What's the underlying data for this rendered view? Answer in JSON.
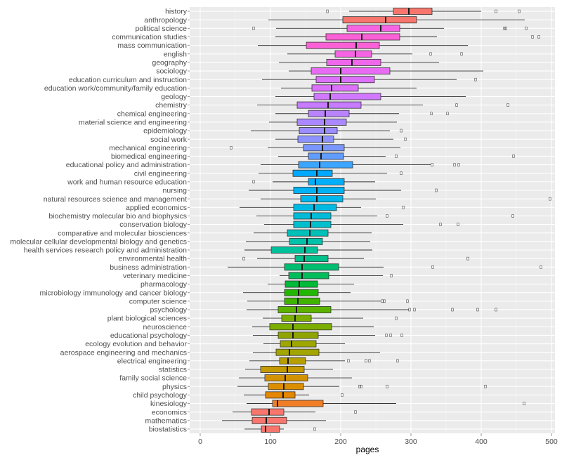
{
  "chart_data": {
    "type": "boxplot",
    "orientation": "horizontal",
    "xlabel": "pages",
    "xlim": [
      -15,
      505
    ],
    "x_ticks": [
      0,
      100,
      200,
      300,
      400,
      500
    ],
    "grid": true,
    "panel_color": "#ebebeb",
    "grid_color": "#ffffff",
    "categories": [
      {
        "name": "history",
        "whisker_lo": 212,
        "q1": 275,
        "median": 297,
        "q3": 330,
        "whisker_hi": 400,
        "outliers": [
          181,
          421,
          454
        ],
        "color": "#f8766d"
      },
      {
        "name": "anthropology",
        "whisker_lo": 97,
        "q1": 203,
        "median": 264,
        "q3": 308,
        "whisker_hi": 462,
        "outliers": [],
        "color": "#f8766d"
      },
      {
        "name": "political science",
        "whisker_lo": 108,
        "q1": 209,
        "median": 257,
        "q3": 284,
        "whisker_hi": 347,
        "outliers": [
          76,
          433,
          435,
          464
        ],
        "color": "#f564e3"
      },
      {
        "name": "communication studies",
        "whisker_lo": 107,
        "q1": 179,
        "median": 230,
        "q3": 284,
        "whisker_hi": 337,
        "outliers": [
          473,
          482
        ],
        "color": "#fb61d7"
      },
      {
        "name": "mass communication",
        "whisker_lo": 82,
        "q1": 151,
        "median": 222,
        "q3": 255,
        "whisker_hi": 381,
        "outliers": [],
        "color": "#fb61d7"
      },
      {
        "name": "english",
        "whisker_lo": 124,
        "q1": 192,
        "median": 221,
        "q3": 244,
        "whisker_hi": 302,
        "outliers": [
          328,
          372
        ],
        "color": "#f564e3"
      },
      {
        "name": "geography",
        "whisker_lo": 112,
        "q1": 180,
        "median": 216,
        "q3": 257,
        "whisker_hi": 340,
        "outliers": [],
        "color": "#ef67eb"
      },
      {
        "name": "sociology",
        "whisker_lo": 126,
        "q1": 158,
        "median": 200,
        "q3": 270,
        "whisker_hi": 403,
        "outliers": [],
        "color": "#e76bf3"
      },
      {
        "name": "education curriculum and instruction",
        "whisker_lo": 88,
        "q1": 165,
        "median": 200,
        "q3": 248,
        "whisker_hi": 365,
        "outliers": [
          392
        ],
        "color": "#dc71fa"
      },
      {
        "name": "education work/community/family education",
        "whisker_lo": 115,
        "q1": 159,
        "median": 187,
        "q3": 225,
        "whisker_hi": 308,
        "outliers": [],
        "color": "#dc71fa"
      },
      {
        "name": "geology",
        "whisker_lo": 107,
        "q1": 162,
        "median": 185,
        "q3": 257,
        "whisker_hi": 378,
        "outliers": [],
        "color": "#d078ff"
      },
      {
        "name": "chemistry",
        "whisker_lo": 81,
        "q1": 138,
        "median": 182,
        "q3": 229,
        "whisker_hi": 317,
        "outliers": [
          365,
          438
        ],
        "color": "#c77cff"
      },
      {
        "name": "chemical engineering",
        "whisker_lo": 107,
        "q1": 154,
        "median": 178,
        "q3": 212,
        "whisker_hi": 283,
        "outliers": [
          329,
          352
        ],
        "color": "#b983ff"
      },
      {
        "name": "material science and engineering",
        "whisker_lo": 98,
        "q1": 138,
        "median": 177,
        "q3": 208,
        "whisker_hi": 280,
        "outliers": [],
        "color": "#ab88ff"
      },
      {
        "name": "epidemiology",
        "whisker_lo": 72,
        "q1": 141,
        "median": 177,
        "q3": 195,
        "whisker_hi": 270,
        "outliers": [
          286
        ],
        "color": "#9c8dff"
      },
      {
        "name": "social work",
        "whisker_lo": 107,
        "q1": 139,
        "median": 174,
        "q3": 190,
        "whisker_hi": 275,
        "outliers": [
          292
        ],
        "color": "#8c92ff"
      },
      {
        "name": "mechanical engineering",
        "whisker_lo": 96,
        "q1": 147,
        "median": 174,
        "q3": 205,
        "whisker_hi": 285,
        "outliers": [
          44
        ],
        "color": "#7a97ff"
      },
      {
        "name": "biomedical engineering",
        "whisker_lo": 111,
        "q1": 154,
        "median": 172,
        "q3": 204,
        "whisker_hi": 264,
        "outliers": [
          279,
          446
        ],
        "color": "#619cff"
      },
      {
        "name": "educational policy and administration",
        "whisker_lo": 86,
        "q1": 140,
        "median": 170,
        "q3": 217,
        "whisker_hi": 328,
        "outliers": [
          330,
          362,
          368
        ],
        "color": "#3ca5ff"
      },
      {
        "name": "civil engineering",
        "whisker_lo": 83,
        "q1": 132,
        "median": 166,
        "q3": 188,
        "whisker_hi": 266,
        "outliers": [
          286
        ],
        "color": "#00a9ff"
      },
      {
        "name": "work and human resource education",
        "whisker_lo": 103,
        "q1": 154,
        "median": 164,
        "q3": 205,
        "whisker_hi": 249,
        "outliers": [
          76
        ],
        "color": "#00aefa"
      },
      {
        "name": "nursing",
        "whisker_lo": 69,
        "q1": 133,
        "median": 166,
        "q3": 205,
        "whisker_hi": 286,
        "outliers": [
          336
        ],
        "color": "#00b2f3"
      },
      {
        "name": "natural resources science and management",
        "whisker_lo": 86,
        "q1": 143,
        "median": 166,
        "q3": 203,
        "whisker_hi": 250,
        "outliers": [
          498
        ],
        "color": "#00b6eb"
      },
      {
        "name": "applied economics",
        "whisker_lo": 56,
        "q1": 133,
        "median": 162,
        "q3": 194,
        "whisker_hi": 229,
        "outliers": [
          289
        ],
        "color": "#00b9e3"
      },
      {
        "name": "biochemistry molecular bio and biophysics",
        "whisker_lo": 80,
        "q1": 133,
        "median": 158,
        "q3": 186,
        "whisker_hi": 252,
        "outliers": [
          266,
          445
        ],
        "color": "#00bcd8"
      },
      {
        "name": "conservation biology",
        "whisker_lo": 91,
        "q1": 133,
        "median": 157,
        "q3": 186,
        "whisker_hi": 289,
        "outliers": [
          342,
          367
        ],
        "color": "#00bfcc"
      },
      {
        "name": "comparative and molecular biosciences",
        "whisker_lo": 76,
        "q1": 124,
        "median": 156,
        "q3": 182,
        "whisker_hi": 244,
        "outliers": [],
        "color": "#00c0b8"
      },
      {
        "name": "molecular cellular developmental biology and genetics",
        "whisker_lo": 65,
        "q1": 127,
        "median": 152,
        "q3": 174,
        "whisker_hi": 242,
        "outliers": [],
        "color": "#00c1a9"
      },
      {
        "name": "health services research policy and administration",
        "whisker_lo": 63,
        "q1": 101,
        "median": 149,
        "q3": 167,
        "whisker_hi": 245,
        "outliers": [],
        "color": "#00c19a"
      },
      {
        "name": "environmental health",
        "whisker_lo": 81,
        "q1": 135,
        "median": 148,
        "q3": 182,
        "whisker_hi": 233,
        "outliers": [
          62,
          381
        ],
        "color": "#00c08b"
      },
      {
        "name": "business administration",
        "whisker_lo": 39,
        "q1": 120,
        "median": 145,
        "q3": 197,
        "whisker_hi": 261,
        "outliers": [
          331,
          485
        ],
        "color": "#00be70"
      },
      {
        "name": "veterinary medicine",
        "whisker_lo": 113,
        "q1": 126,
        "median": 145,
        "q3": 183,
        "whisker_hi": 260,
        "outliers": [
          272
        ],
        "color": "#00bd5c"
      },
      {
        "name": "pharmacology",
        "whisker_lo": 96,
        "q1": 121,
        "median": 141,
        "q3": 167,
        "whisker_hi": 219,
        "outliers": [],
        "color": "#00ba38"
      },
      {
        "name": "microbiology immunology and cancer biology",
        "whisker_lo": 61,
        "q1": 120,
        "median": 140,
        "q3": 168,
        "whisker_hi": 214,
        "outliers": [],
        "color": "#22b600"
      },
      {
        "name": "computer science",
        "whisker_lo": 67,
        "q1": 120,
        "median": 139,
        "q3": 170,
        "whisker_hi": 257,
        "outliers": [
          259,
          262,
          295
        ],
        "color": "#3fb300"
      },
      {
        "name": "psychology",
        "whisker_lo": 66,
        "q1": 111,
        "median": 137,
        "q3": 186,
        "whisker_hi": 297,
        "outliers": [
          298,
          305,
          359,
          395,
          421
        ],
        "color": "#5bb300"
      },
      {
        "name": "plant biological sciences",
        "whisker_lo": 89,
        "q1": 116,
        "median": 135,
        "q3": 158,
        "whisker_hi": 232,
        "outliers": [
          279
        ],
        "color": "#7cae00"
      },
      {
        "name": "neuroscience",
        "whisker_lo": 74,
        "q1": 99,
        "median": 132,
        "q3": 187,
        "whisker_hi": 247,
        "outliers": [],
        "color": "#7cae00"
      },
      {
        "name": "educational psychology",
        "whisker_lo": 75,
        "q1": 111,
        "median": 132,
        "q3": 168,
        "whisker_hi": 249,
        "outliers": [
          265,
          271,
          287
        ],
        "color": "#8fa400"
      },
      {
        "name": "ecology evolution and behavior",
        "whisker_lo": 90,
        "q1": 114,
        "median": 130,
        "q3": 165,
        "whisker_hi": 206,
        "outliers": [],
        "color": "#9da700"
      },
      {
        "name": "aerospace engineering and mechanics",
        "whisker_lo": 75,
        "q1": 108,
        "median": 127,
        "q3": 169,
        "whisker_hi": 256,
        "outliers": [],
        "color": "#a3a500"
      },
      {
        "name": "electrical engineering",
        "whisker_lo": 70,
        "q1": 113,
        "median": 125,
        "q3": 150,
        "whisker_hi": 206,
        "outliers": [
          211,
          236,
          241,
          281
        ],
        "color": "#b79f00"
      },
      {
        "name": "statistics",
        "whisker_lo": 64,
        "q1": 86,
        "median": 124,
        "q3": 148,
        "whisker_hi": 189,
        "outliers": [],
        "color": "#c49a00"
      },
      {
        "name": "family social science",
        "whisker_lo": 55,
        "q1": 92,
        "median": 121,
        "q3": 153,
        "whisker_hi": 216,
        "outliers": [],
        "color": "#d39200"
      },
      {
        "name": "physics",
        "whisker_lo": 53,
        "q1": 97,
        "median": 119,
        "q3": 147,
        "whisker_hi": 198,
        "outliers": [
          227,
          229,
          266,
          406
        ],
        "color": "#db8e00"
      },
      {
        "name": "child psychology",
        "whisker_lo": 62,
        "q1": 93,
        "median": 118,
        "q3": 135,
        "whisker_hi": 155,
        "outliers": [
          202
        ],
        "color": "#e58700"
      },
      {
        "name": "kinesiology",
        "whisker_lo": 66,
        "q1": 103,
        "median": 110,
        "q3": 175,
        "whisker_hi": 279,
        "outliers": [
          461
        ],
        "color": "#f07e26"
      },
      {
        "name": "economics",
        "whisker_lo": 46,
        "q1": 73,
        "median": 98,
        "q3": 119,
        "whisker_hi": 164,
        "outliers": [
          221
        ],
        "color": "#f8766d"
      },
      {
        "name": "mathematics",
        "whisker_lo": 31,
        "q1": 74,
        "median": 94,
        "q3": 123,
        "whisker_hi": 179,
        "outliers": [],
        "color": "#f8766d"
      },
      {
        "name": "biostatistics",
        "whisker_lo": 63,
        "q1": 87,
        "median": 93,
        "q3": 113,
        "whisker_hi": 119,
        "outliers": [
          163
        ],
        "color": "#f8766d"
      }
    ]
  }
}
